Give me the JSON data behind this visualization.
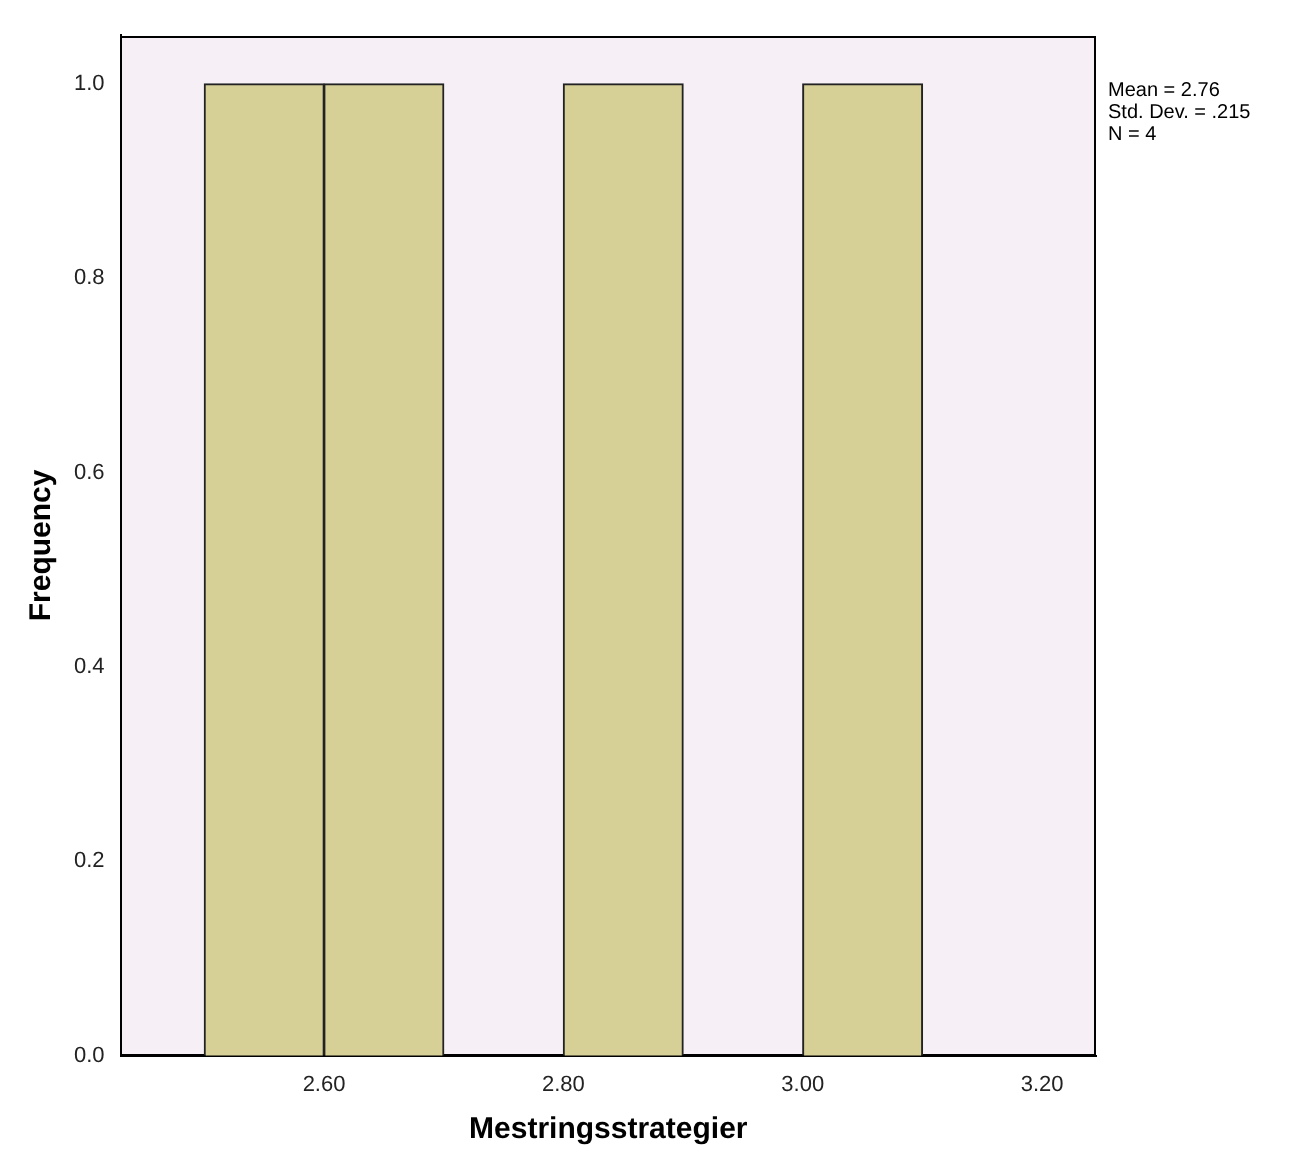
{
  "chart_data": {
    "type": "histogram",
    "xlabel": "Mestringsstrategier",
    "ylabel": "Frequency",
    "bins": [
      2.5,
      2.6,
      2.7,
      2.8,
      2.9,
      3.0,
      3.1
    ],
    "values": [
      1,
      1,
      0,
      1,
      0,
      1
    ],
    "color": "#d6cf96",
    "xlim": [
      2.43,
      3.245
    ],
    "xticks": [
      {
        "value": 2.6,
        "label": "2.60"
      },
      {
        "value": 2.8,
        "label": "2.80"
      },
      {
        "value": 3.0,
        "label": "3.00"
      },
      {
        "value": 3.2,
        "label": "3.20"
      }
    ],
    "ylim": [
      0,
      1.05
    ],
    "yticks": [
      {
        "value": 0,
        "label": "0.0"
      },
      {
        "value": 0.2,
        "label": "0.2"
      },
      {
        "value": 0.4,
        "label": "0.4"
      },
      {
        "value": 0.6,
        "label": "0.6"
      },
      {
        "value": 0.8,
        "label": "0.8"
      },
      {
        "value": 1.0,
        "label": "1.0"
      }
    ],
    "grid": false,
    "legend": false,
    "annotations": [
      "Mean = 2.76",
      "Std. Dev. = .215",
      "N = 4"
    ]
  }
}
